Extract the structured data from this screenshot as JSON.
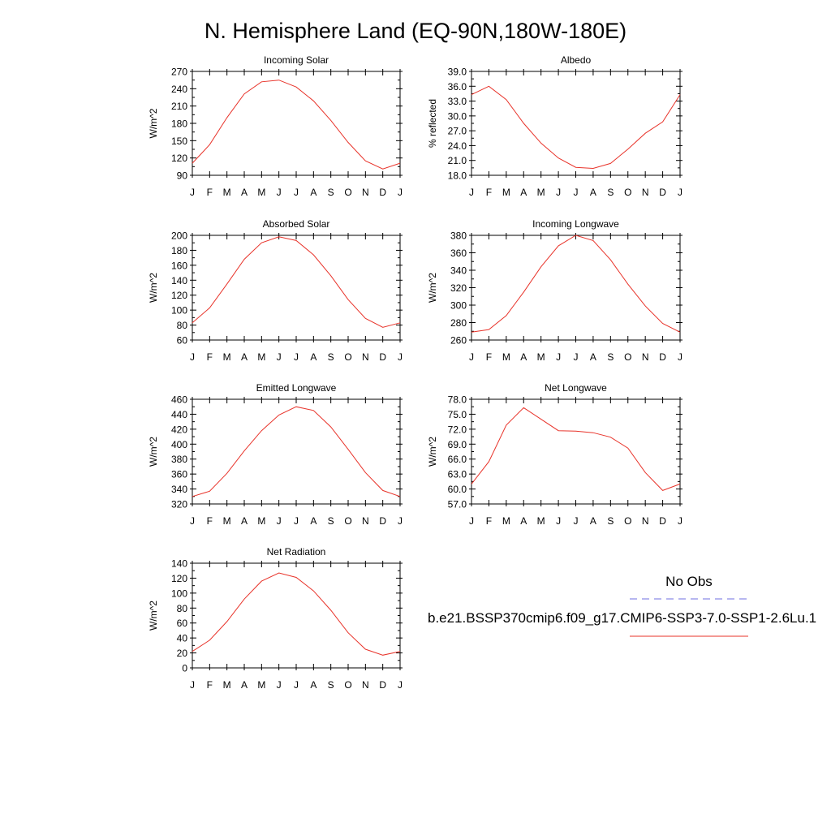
{
  "title": "N. Hemisphere Land (EQ-90N,180W-180E)",
  "legend": {
    "obs_label": "No Obs",
    "obs_color": "#6f6fe0",
    "model_label": "b.e21.BSSP370cmip6.f09_g17.CMIP6-SSP3-7.0-SSP1-2.6Lu.1",
    "model_color": "#e8332a"
  },
  "chart_data": [
    {
      "type": "line",
      "title": "Incoming Solar",
      "ylabel": "W/m^2",
      "x": [
        "J",
        "F",
        "M",
        "A",
        "M",
        "J",
        "J",
        "A",
        "S",
        "O",
        "N",
        "D",
        "J"
      ],
      "ylim": [
        90,
        270
      ],
      "yticks": [
        "90",
        "120",
        "150",
        "180",
        "210",
        "240",
        "270"
      ],
      "grid": false,
      "series": [
        {
          "values": [
            111,
            143,
            190,
            231,
            252,
            255,
            243,
            219,
            185,
            147,
            115,
            101,
            111
          ]
        }
      ]
    },
    {
      "type": "line",
      "title": "Albedo",
      "ylabel": "% reflected",
      "x": [
        "J",
        "F",
        "M",
        "A",
        "M",
        "J",
        "J",
        "A",
        "S",
        "O",
        "N",
        "D",
        "J"
      ],
      "ylim": [
        18,
        39
      ],
      "yticks": [
        "18.0",
        "21.0",
        "24.0",
        "27.0",
        "30.0",
        "33.0",
        "36.0",
        "39.0"
      ],
      "grid": false,
      "series": [
        {
          "values": [
            34.3,
            36.0,
            33.3,
            28.5,
            24.5,
            21.5,
            19.6,
            19.4,
            20.4,
            23.3,
            26.5,
            28.8,
            34.3
          ]
        }
      ]
    },
    {
      "type": "line",
      "title": "Absorbed Solar",
      "ylabel": "W/m^2",
      "x": [
        "J",
        "F",
        "M",
        "A",
        "M",
        "J",
        "J",
        "A",
        "S",
        "O",
        "N",
        "D",
        "J"
      ],
      "ylim": [
        60,
        200
      ],
      "yticks": [
        "60",
        "80",
        "100",
        "120",
        "140",
        "160",
        "180",
        "200"
      ],
      "grid": false,
      "series": [
        {
          "values": [
            83,
            103,
            135,
            168,
            190,
            198,
            193,
            174,
            146,
            114,
            89,
            77,
            83
          ]
        }
      ]
    },
    {
      "type": "line",
      "title": "Incoming Longwave",
      "ylabel": "W/m^2",
      "x": [
        "J",
        "F",
        "M",
        "A",
        "M",
        "J",
        "J",
        "A",
        "S",
        "O",
        "N",
        "D",
        "J"
      ],
      "ylim": [
        260,
        380
      ],
      "yticks": [
        "260",
        "280",
        "300",
        "320",
        "340",
        "360",
        "380"
      ],
      "grid": false,
      "series": [
        {
          "values": [
            269,
            272,
            288,
            315,
            344,
            368,
            380,
            374,
            352,
            324,
            299,
            279,
            269
          ]
        }
      ]
    },
    {
      "type": "line",
      "title": "Emitted Longwave",
      "ylabel": "W/m^2",
      "x": [
        "J",
        "F",
        "M",
        "A",
        "M",
        "J",
        "J",
        "A",
        "S",
        "O",
        "N",
        "D",
        "J"
      ],
      "ylim": [
        320,
        460
      ],
      "yticks": [
        "320",
        "340",
        "360",
        "380",
        "400",
        "420",
        "440",
        "460"
      ],
      "grid": false,
      "series": [
        {
          "values": [
            330,
            337,
            361,
            391,
            418,
            439,
            450,
            445,
            423,
            393,
            362,
            338,
            330
          ]
        }
      ]
    },
    {
      "type": "line",
      "title": "Net Longwave",
      "ylabel": "W/m^2",
      "x": [
        "J",
        "F",
        "M",
        "A",
        "M",
        "J",
        "J",
        "A",
        "S",
        "O",
        "N",
        "D",
        "J"
      ],
      "ylim": [
        57,
        78
      ],
      "yticks": [
        "57.0",
        "60.0",
        "63.0",
        "66.0",
        "69.0",
        "72.0",
        "75.0",
        "78.0"
      ],
      "grid": false,
      "series": [
        {
          "values": [
            61.0,
            65.5,
            72.8,
            76.3,
            74.0,
            71.7,
            71.6,
            71.3,
            70.4,
            68.2,
            63.3,
            59.7,
            61.0
          ]
        }
      ]
    },
    {
      "type": "line",
      "title": "Net Radiation",
      "ylabel": "W/m^2",
      "x": [
        "J",
        "F",
        "M",
        "A",
        "M",
        "J",
        "J",
        "A",
        "S",
        "O",
        "N",
        "D",
        "J"
      ],
      "ylim": [
        0,
        140
      ],
      "yticks": [
        "0",
        "20",
        "40",
        "60",
        "80",
        "100",
        "120",
        "140"
      ],
      "grid": false,
      "series": [
        {
          "values": [
            22,
            37,
            62,
            92,
            116,
            127,
            121,
            103,
            77,
            47,
            25,
            17,
            22
          ]
        }
      ]
    }
  ]
}
